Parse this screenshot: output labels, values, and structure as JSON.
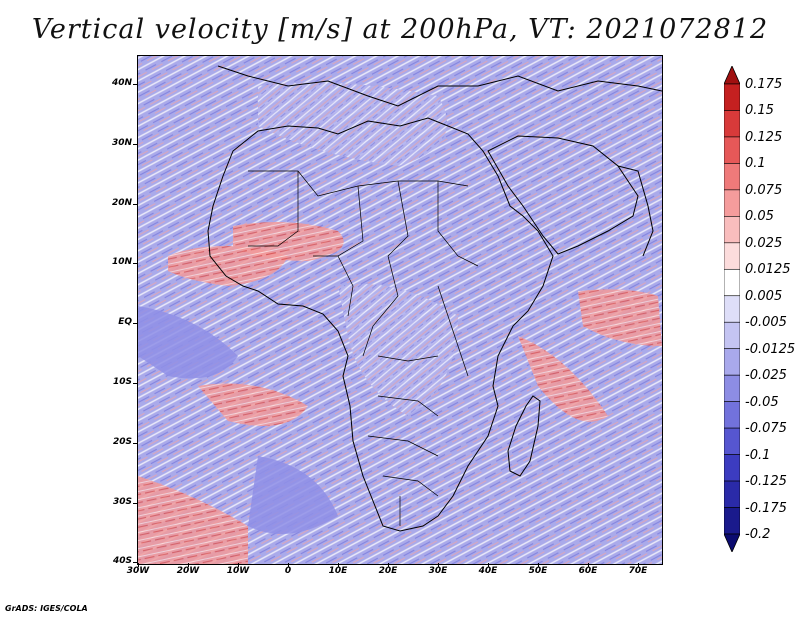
{
  "title": "Vertical velocity [m/s] at 200hPa, VT: 2021072812",
  "credit": "GrADS: IGES/COLA",
  "map": {
    "lat_labels": [
      "40N",
      "30N",
      "20N",
      "10N",
      "EQ",
      "10S",
      "20S",
      "30S",
      "40S"
    ],
    "lon_labels": [
      "30W",
      "20W",
      "10W",
      "0",
      "10E",
      "20E",
      "30E",
      "40E",
      "50E",
      "60E",
      "70E"
    ],
    "field_colors": {
      "strong_up": "#c42a2a",
      "up": "#f08a8a",
      "weak": "#ffffff",
      "down": "#8f8fe6",
      "strong_down": "#3030b0"
    }
  },
  "colorbar": {
    "labels": [
      "0.175",
      "0.15",
      "0.125",
      "0.1",
      "0.075",
      "0.05",
      "0.025",
      "0.0125",
      "0.005",
      "-0.005",
      "-0.0125",
      "-0.025",
      "-0.05",
      "-0.075",
      "-0.1",
      "-0.125",
      "-0.175",
      "-0.2"
    ],
    "colors": [
      "#a01010",
      "#c42020",
      "#d83a3a",
      "#e65858",
      "#ef7a7a",
      "#f59c9c",
      "#f9bdbd",
      "#fcdcdc",
      "#ffffff",
      "#dedef8",
      "#c4c4f2",
      "#a9a9ec",
      "#8d8de4",
      "#7272dc",
      "#5656d0",
      "#3c3cc0",
      "#2a2aa8",
      "#1a1a8c",
      "#0b0b70"
    ]
  }
}
